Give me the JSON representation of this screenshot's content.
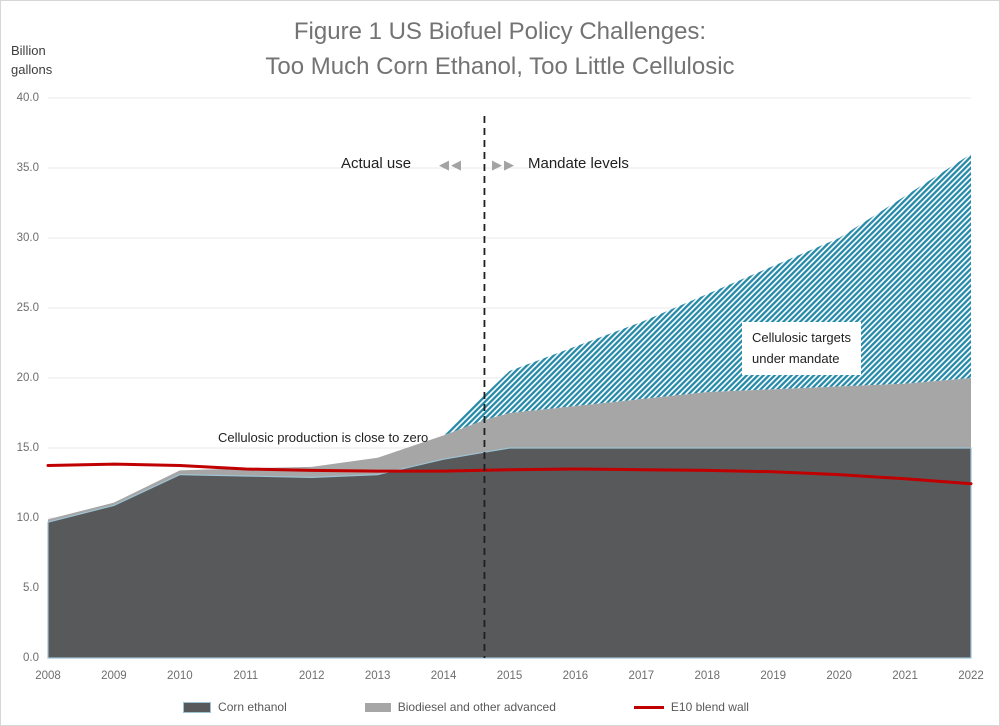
{
  "figure": {
    "title_line1": "Figure 1 US Biofuel Policy Challenges:",
    "title_line2": "Too Much Corn Ethanol, Too Little Cellulosic",
    "y_unit_line1": "Billion",
    "y_unit_line2": "gallons"
  },
  "annotations": {
    "actual_use": "Actual use",
    "mandate_levels": "Mandate levels",
    "left_arrows": "◀◀",
    "right_arrows": "▶▶",
    "cellulosic_zero": "Cellulosic production is close to zero",
    "cellulosic_targets_line1": "Cellulosic targets",
    "cellulosic_targets_line2": "under mandate"
  },
  "legend": {
    "items": [
      {
        "label": "Corn ethanol",
        "swatch": "dark-gray-area"
      },
      {
        "label": "Biodiesel and other advanced",
        "swatch": "light-gray-area"
      },
      {
        "label": "E10 blend wall",
        "swatch": "red-line"
      }
    ]
  },
  "colors": {
    "corn_area": "#58595a",
    "corn_edge": "#9dc3d4",
    "biodiesel_area": "#a6a6a6",
    "cellulosic_hatch": "#2589a8",
    "blend_wall_line": "#c00000",
    "divider_line": "#1f1f1f",
    "gridline": "#e9e9e9",
    "title_text": "#737373"
  },
  "chart_data": {
    "type": "area",
    "title": "Figure 1 US Biofuel Policy Challenges: Too Much Corn Ethanol, Too Little Cellulosic",
    "ylabel": "Billion gallons",
    "ylim": [
      0,
      40
    ],
    "ytick_step": 5,
    "y_ticks": [
      "0.0",
      "5.0",
      "10.0",
      "15.0",
      "20.0",
      "25.0",
      "30.0",
      "35.0",
      "40.0"
    ],
    "x_ticks": [
      "2008",
      "2009",
      "2010",
      "2011",
      "2012",
      "2013",
      "2014",
      "2015",
      "2016",
      "2017",
      "2018",
      "2019",
      "2020",
      "2021",
      "2022"
    ],
    "x_range": [
      2008,
      2022
    ],
    "divider_x": 2014.62,
    "grid": "horizontal",
    "legend_position": "bottom",
    "series": [
      {
        "name": "Corn ethanol",
        "role": "stacked-area-top-boundary",
        "color": "#58595a",
        "edge_color": "#9dc3d4",
        "x": [
          2008,
          2009,
          2010,
          2011,
          2012,
          2013,
          2014,
          2014.62,
          2015,
          2016,
          2017,
          2018,
          2019,
          2020,
          2021,
          2022
        ],
        "values": [
          9.7,
          10.9,
          13.1,
          13.0,
          12.9,
          13.1,
          14.2,
          14.7,
          15.0,
          15.0,
          15.0,
          15.0,
          15.0,
          15.0,
          15.0,
          15.0
        ]
      },
      {
        "name": "Biodiesel and other advanced (cumulative top incl. corn ethanol)",
        "role": "stacked-area-top-boundary",
        "color": "#a6a6a6",
        "x": [
          2008,
          2009,
          2010,
          2011,
          2012,
          2013,
          2014,
          2014.62,
          2015,
          2016,
          2017,
          2018,
          2019,
          2020,
          2021,
          2022
        ],
        "values": [
          9.9,
          11.1,
          13.4,
          13.55,
          13.65,
          14.3,
          15.9,
          17.0,
          17.5,
          18.0,
          18.5,
          19.0,
          19.2,
          19.4,
          19.6,
          20.0
        ]
      },
      {
        "name": "Cellulosic targets under mandate (total mandate top)",
        "role": "hatched-area-top-boundary",
        "color": "#2589a8",
        "pattern": "diagonal-stripes",
        "x": [
          2014,
          2014.62,
          2015,
          2016,
          2017,
          2018,
          2019,
          2020,
          2021,
          2022
        ],
        "values": [
          15.9,
          18.8,
          20.5,
          22.25,
          24.0,
          26.0,
          28.0,
          30.0,
          33.0,
          36.0
        ]
      },
      {
        "name": "E10 blend wall",
        "role": "line",
        "color": "#c00000",
        "x": [
          2008,
          2009,
          2010,
          2011,
          2012,
          2013,
          2014,
          2015,
          2016,
          2017,
          2018,
          2019,
          2020,
          2021,
          2022
        ],
        "values": [
          13.75,
          13.85,
          13.75,
          13.5,
          13.4,
          13.35,
          13.35,
          13.45,
          13.5,
          13.45,
          13.4,
          13.3,
          13.1,
          12.8,
          12.45
        ]
      }
    ]
  }
}
